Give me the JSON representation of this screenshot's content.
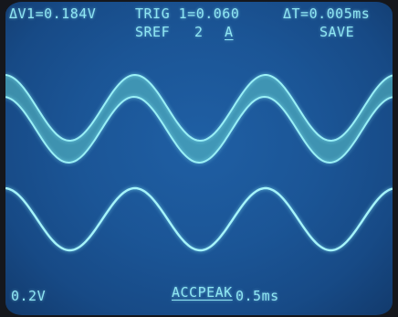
{
  "header": {
    "delta_v": "ΔV1=0.184V",
    "trigger": "TRIG 1=0.060",
    "delta_t": "ΔT=0.005ms",
    "sref": "SREF",
    "sref_channel": "2",
    "sref_mode": "A",
    "save": "SAVE"
  },
  "footer": {
    "volts_per_div": "0.2V",
    "acq_mode": "ACCPEAK",
    "time_per_div": "0.5ms"
  },
  "colors": {
    "screen": "#1b5596",
    "trace": "#8fe6f2",
    "envelope_fill": "#5cc6c9"
  }
}
